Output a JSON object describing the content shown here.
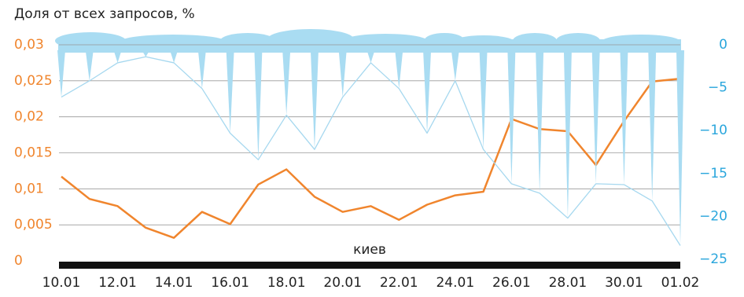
{
  "chart_data": {
    "type": "line",
    "title": "Доля от всех запросов, %",
    "annotation": "киев",
    "categories": [
      "10.01",
      null,
      "12.01",
      null,
      "14.01",
      null,
      "16.01",
      null,
      "18.01",
      null,
      "20.01",
      null,
      "22.01",
      null,
      "24.01",
      null,
      "26.01",
      null,
      "28.01",
      null,
      "30.01",
      null,
      "01.02"
    ],
    "series": [
      {
        "color": "#f0852d",
        "values": [
          0.0117,
          0.0086,
          0.0076,
          0.0046,
          0.0032,
          0.0068,
          0.0051,
          0.0106,
          0.0127,
          0.0089,
          0.0068,
          0.0076,
          0.0057,
          0.0078,
          0.0091,
          0.0096,
          0.0197,
          0.0183,
          0.018,
          0.0133,
          0.0194,
          0.0249,
          0.0253
        ]
      },
      {
        "color": "#a6d8ef",
        "axis": "y2",
        "values": [
          -6.1,
          -4.2,
          -2.1,
          -1.4,
          -2.1,
          -5.1,
          -10.3,
          -13.4,
          -8.2,
          -12.2,
          -6.1,
          -2.1,
          -5.1,
          -10.3,
          -4.2,
          -12.2,
          -16.2,
          -17.3,
          -20.2,
          -16.2,
          -16.3,
          -18.2,
          -23.4
        ]
      }
    ],
    "ylim": [
      0,
      0.03
    ],
    "yticks": [
      0,
      {
        "value": 0.005,
        "label": "0,005"
      },
      {
        "value": 0.01,
        "label": "0,01"
      },
      {
        "value": 0.015,
        "label": "0,015"
      },
      {
        "value": 0.02,
        "label": "0,02"
      },
      {
        "value": 0.025,
        "label": "0,025"
      },
      {
        "value": 0.03,
        "label": "0,03"
      }
    ],
    "y2lim": [
      -25,
      0
    ],
    "y2ticks": [
      0,
      {
        "value": -5,
        "label": "−5"
      },
      {
        "value": -10,
        "label": "−10"
      },
      {
        "value": -15,
        "label": "−15"
      },
      {
        "value": -20,
        "label": "−20"
      },
      {
        "value": -25,
        "label": "−25"
      }
    ],
    "grid": true
  }
}
